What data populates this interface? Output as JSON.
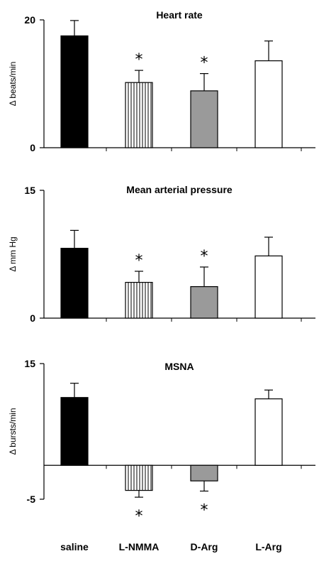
{
  "categories": [
    "saline",
    "L-NMMA",
    "D-Arg",
    "L-Arg"
  ],
  "colors": {
    "saline": "#000000",
    "D-Arg": "#9a9a9a",
    "L-Arg": "#ffffff",
    "L-NMMA": "#ffffff"
  },
  "chart_data": [
    {
      "type": "bar",
      "title": "Heart rate",
      "ylabel": "Δ beats/min",
      "ylim": [
        0,
        20
      ],
      "yticks": [
        "0",
        "20"
      ],
      "categories": [
        "saline",
        "L-NMMA",
        "D-Arg",
        "L-Arg"
      ],
      "values": [
        17.5,
        10.2,
        8.9,
        13.6
      ],
      "errors": [
        2.4,
        1.9,
        2.7,
        3.1
      ],
      "significant": [
        false,
        true,
        true,
        false
      ],
      "significance_marker": "*"
    },
    {
      "type": "bar",
      "title": "Mean arterial pressure",
      "ylabel": "Δ mm Hg",
      "ylim": [
        0,
        15
      ],
      "yticks": [
        "0",
        "15"
      ],
      "categories": [
        "saline",
        "L-NMMA",
        "D-Arg",
        "L-Arg"
      ],
      "values": [
        8.2,
        4.2,
        3.7,
        7.3
      ],
      "errors": [
        2.1,
        1.3,
        2.3,
        2.2
      ],
      "significant": [
        false,
        true,
        true,
        false
      ],
      "significance_marker": "*"
    },
    {
      "type": "bar",
      "title": "MSNA",
      "ylabel": "Δ bursts/min",
      "ylim": [
        -5,
        15
      ],
      "yticks": [
        "-5",
        "15"
      ],
      "categories": [
        "saline",
        "L-NMMA",
        "D-Arg",
        "L-Arg"
      ],
      "values": [
        10.0,
        -3.7,
        -2.3,
        9.8
      ],
      "errors": [
        2.1,
        1.0,
        1.5,
        1.3
      ],
      "significant": [
        false,
        true,
        true,
        false
      ],
      "significance_marker": "*"
    }
  ]
}
